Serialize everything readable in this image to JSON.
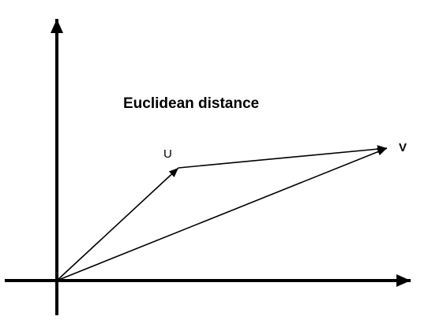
{
  "diagram": {
    "title": "Euclidean distance",
    "labels": {
      "u": "U",
      "v": "V"
    },
    "colors": {
      "background": "#ffffff",
      "stroke": "#000000"
    }
  }
}
